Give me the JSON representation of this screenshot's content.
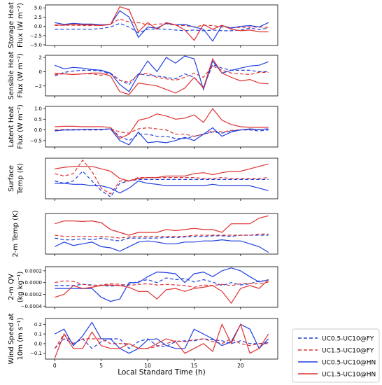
{
  "chart_data": {
    "type": "line",
    "x": [
      0,
      1,
      2,
      3,
      4,
      5,
      6,
      7,
      8,
      9,
      10,
      11,
      12,
      13,
      14,
      15,
      16,
      17,
      18,
      19,
      20,
      21,
      22,
      23
    ],
    "xlim": [
      -1,
      24
    ],
    "xticks": [
      0,
      5,
      10,
      15,
      20
    ],
    "xlabel": "Local Standard Time (h)",
    "legend": {
      "position": "lower-right",
      "entries": [
        {
          "label": "UC0.5-UC10@FY",
          "color": "#1f3fdf",
          "dash": "dashed"
        },
        {
          "label": "UC1.5-UC10@FY",
          "color": "#e03030",
          "dash": "dashed"
        },
        {
          "label": "UC0.5-UC10@HN",
          "color": "#1f3fdf",
          "dash": "solid"
        },
        {
          "label": "UC1.5-UC10@HN",
          "color": "#e03030",
          "dash": "solid"
        }
      ]
    },
    "panels": [
      {
        "ylabel": [
          "Storage Heat",
          "Flux (W m⁻²)"
        ],
        "ylim": [
          -5.2,
          5.8
        ],
        "yticks": [
          -5.0,
          -2.5,
          0.0,
          2.5,
          5.0
        ],
        "ytick_labels": [
          "−5.0",
          "−2.5",
          "0.0",
          "2.5",
          "5.0"
        ],
        "series": [
          {
            "values": [
              -0.8,
              -0.8,
              -0.8,
              -0.8,
              -0.8,
              -0.6,
              -0.2,
              0.8,
              -0.2,
              -1.8,
              -0.8,
              -0.7,
              -0.8,
              -1.0,
              -1.2,
              -1.0,
              -1.2,
              -1.0,
              -1.2,
              -1.2,
              -1.0,
              -0.5,
              -0.9,
              -0.5
            ]
          },
          {
            "values": [
              0.2,
              0.3,
              0.3,
              0.2,
              0.2,
              0.3,
              0.6,
              2.0,
              1.2,
              1.0,
              0.4,
              0.6,
              0.7,
              0.3,
              0.2,
              -0.2,
              0.3,
              0.2,
              -0.2,
              -0.3,
              -0.3,
              -0.2,
              -0.2,
              -0.3
            ]
          },
          {
            "values": [
              1.0,
              0.5,
              0.8,
              0.6,
              0.6,
              0.4,
              0.5,
              4.2,
              2.5,
              -3.0,
              -0.2,
              -0.5,
              0.8,
              0.4,
              0.5,
              -0.2,
              -0.8,
              -4.0,
              0.2,
              -0.5,
              0.0,
              0.2,
              -0.2,
              1.0
            ]
          },
          {
            "values": [
              0.4,
              0.3,
              0.6,
              0.4,
              0.4,
              0.2,
              0.5,
              5.3,
              4.5,
              -1.5,
              1.0,
              -0.8,
              1.0,
              0.4,
              -1.0,
              -3.8,
              0.5,
              -0.8,
              0.3,
              -0.8,
              -1.2,
              -1.0,
              -1.5,
              -1.5
            ]
          }
        ]
      },
      {
        "ylabel": [
          "Sensible Heat",
          "Flux (W m⁻²)"
        ],
        "ylim": [
          -3.4,
          2.3
        ],
        "yticks": [
          -2,
          0,
          2
        ],
        "ytick_labels": [
          "−2",
          "0",
          "2"
        ],
        "series": [
          {
            "values": [
              -0.6,
              -0.1,
              0.1,
              0.2,
              0.2,
              0.1,
              -0.3,
              -1.2,
              -1.8,
              -0.3,
              -0.5,
              -0.6,
              -0.8,
              -1.0,
              -0.3,
              -0.8,
              -2.2,
              1.0,
              0.5,
              0.2,
              0.2,
              0.2,
              0.0,
              0.0
            ]
          },
          {
            "values": [
              -0.4,
              -0.3,
              -0.4,
              -0.3,
              -0.3,
              -0.5,
              -0.2,
              -1.2,
              -1.5,
              -0.4,
              -0.2,
              -0.8,
              -1.0,
              -1.2,
              -0.8,
              -0.2,
              -0.8,
              0.8,
              0.2,
              -0.2,
              -0.3,
              -0.4,
              -0.1,
              -0.1
            ]
          },
          {
            "values": [
              0.9,
              0.4,
              0.6,
              0.5,
              0.3,
              0.2,
              -0.2,
              -1.8,
              -2.8,
              -0.5,
              1.5,
              0.0,
              2.0,
              1.2,
              2.2,
              1.8,
              -2.5,
              1.5,
              -0.2,
              0.2,
              0.5,
              0.8,
              0.9,
              1.4
            ]
          },
          {
            "values": [
              -0.2,
              -0.3,
              -0.4,
              -0.3,
              -0.2,
              -0.2,
              -0.6,
              -2.8,
              -3.2,
              -1.6,
              -1.8,
              -2.0,
              -2.5,
              -3.0,
              -2.3,
              -0.8,
              -2.3,
              1.8,
              -0.2,
              -0.8,
              -1.3,
              -1.1,
              -1.6,
              -1.7
            ]
          }
        ]
      },
      {
        "ylabel": [
          "Latent Heat",
          "Flux (W m⁻²)"
        ],
        "ylim": [
          -0.8,
          1.1
        ],
        "yticks": [
          -0.5,
          0.0,
          0.5,
          1.0
        ],
        "ytick_labels": [
          "−0.5",
          "0.0",
          "0.5",
          "1.0"
        ],
        "series": [
          {
            "values": [
              -0.02,
              0.0,
              0.0,
              0.0,
              0.0,
              0.0,
              0.05,
              -0.3,
              -0.5,
              -0.2,
              -0.2,
              -0.3,
              -0.3,
              -0.4,
              -0.4,
              -0.3,
              -0.2,
              -0.1,
              -0.15,
              -0.05,
              0.0,
              0.0,
              -0.05,
              0.0
            ]
          },
          {
            "values": [
              0.0,
              0.02,
              0.02,
              0.02,
              0.03,
              0.02,
              0.05,
              -0.1,
              -0.15,
              0.05,
              0.1,
              0.05,
              0.0,
              -0.2,
              -0.2,
              -0.3,
              -0.2,
              -0.05,
              -0.1,
              -0.02,
              0.0,
              0.02,
              0.02,
              0.05
            ]
          },
          {
            "values": [
              -0.05,
              0.0,
              0.0,
              0.02,
              0.03,
              0.03,
              0.05,
              -0.5,
              -0.7,
              -0.1,
              -0.6,
              -0.55,
              -0.6,
              -0.5,
              -0.35,
              -0.5,
              -0.2,
              0.1,
              -0.3,
              -0.1,
              0.0,
              0.05,
              0.02,
              0.05
            ]
          },
          {
            "values": [
              0.15,
              0.17,
              0.17,
              0.15,
              0.15,
              0.15,
              0.12,
              -0.4,
              -0.2,
              0.45,
              0.55,
              0.75,
              0.65,
              0.5,
              0.55,
              0.7,
              0.35,
              1.0,
              0.45,
              0.25,
              0.15,
              0.12,
              0.12,
              0.12
            ]
          }
        ]
      },
      {
        "ylabel": [
          "Surface",
          "Temp (K)"
        ],
        "ylim": [
          -0.42,
          0.42
        ],
        "yticks": [],
        "ytick_labels": [],
        "series": [
          {
            "values": [
              -0.05,
              -0.1,
              -0.05,
              0.15,
              -0.05,
              -0.25,
              -0.38,
              -0.1,
              -0.05,
              -0.02,
              -0.02,
              -0.02,
              -0.02,
              -0.02,
              -0.02,
              -0.02,
              -0.02,
              -0.02,
              -0.02,
              -0.02,
              -0.02,
              -0.02,
              -0.02,
              -0.02
            ]
          },
          {
            "values": [
              0.1,
              0.05,
              0.1,
              0.38,
              0.15,
              -0.2,
              -0.32,
              -0.05,
              -0.05,
              0.02,
              0.02,
              0.02,
              0.02,
              0.02,
              0.02,
              0.02,
              0.0,
              0.0,
              0.02,
              0.0,
              0.0,
              0.0,
              0.0,
              0.02
            ]
          },
          {
            "values": [
              -0.1,
              -0.1,
              -0.12,
              -0.12,
              -0.15,
              -0.15,
              -0.2,
              -0.3,
              -0.2,
              -0.05,
              -0.1,
              -0.12,
              -0.15,
              -0.15,
              -0.15,
              -0.15,
              -0.15,
              -0.12,
              -0.15,
              -0.15,
              -0.15,
              -0.15,
              -0.2,
              -0.25
            ]
          },
          {
            "values": [
              0.2,
              0.23,
              0.25,
              0.25,
              0.25,
              0.2,
              0.15,
              0.0,
              -0.05,
              0.0,
              0.02,
              0.02,
              0.05,
              0.05,
              0.05,
              0.1,
              0.12,
              0.08,
              0.12,
              0.15,
              0.15,
              0.2,
              0.25,
              0.3
            ]
          }
        ]
      },
      {
        "ylabel": [
          "2-m Temp (K)"
        ],
        "ylim": [
          -0.33,
          0.38
        ],
        "yticks": [],
        "ytick_labels": [],
        "series": [
          {
            "values": [
              -0.05,
              -0.08,
              -0.08,
              -0.06,
              -0.08,
              -0.05,
              -0.08,
              -0.1,
              -0.05,
              -0.05,
              -0.05,
              -0.05,
              -0.04,
              -0.04,
              -0.03,
              -0.02,
              -0.02,
              -0.01,
              -0.01,
              -0.02,
              0.0,
              0.0,
              0.0,
              0.0
            ]
          },
          {
            "values": [
              0.0,
              -0.02,
              -0.02,
              -0.02,
              -0.02,
              -0.02,
              -0.03,
              -0.05,
              -0.03,
              -0.02,
              -0.02,
              -0.02,
              -0.02,
              -0.02,
              -0.02,
              0.0,
              0.0,
              0.0,
              0.0,
              0.0,
              0.0,
              0.0,
              0.02,
              0.02
            ]
          },
          {
            "values": [
              -0.2,
              -0.12,
              -0.18,
              -0.15,
              -0.12,
              -0.2,
              -0.22,
              -0.28,
              -0.2,
              -0.12,
              -0.1,
              -0.12,
              -0.15,
              -0.15,
              -0.12,
              -0.12,
              -0.1,
              -0.1,
              -0.08,
              -0.1,
              -0.1,
              -0.15,
              -0.2,
              -0.3
            ]
          },
          {
            "values": [
              0.2,
              0.25,
              0.25,
              0.24,
              0.25,
              0.22,
              0.1,
              0.05,
              0.0,
              0.05,
              0.05,
              0.05,
              0.1,
              0.08,
              0.1,
              0.12,
              0.1,
              0.1,
              0.05,
              0.2,
              0.2,
              0.2,
              0.3,
              0.34
            ]
          }
        ]
      },
      {
        "ylabel": [
          "2-m QV",
          "(kg kg⁻¹)"
        ],
        "ylim": [
          -0.00042,
          0.00027
        ],
        "yticks": [
          -0.0004,
          -0.0002,
          0.0,
          0.0002
        ],
        "ytick_labels": [
          "−0.0004",
          "−0.0002",
          "0.0000",
          "0.0002"
        ],
        "series": [
          {
            "values": [
              -5e-05,
              -5e-05,
              -5e-05,
              -3e-05,
              -4e-05,
              -5e-05,
              -6e-05,
              -5e-05,
              -3e-05,
              2e-05,
              5e-05,
              0.0,
              8e-05,
              5e-05,
              7e-05,
              1e-05,
              5e-05,
              1e-05,
              -5e-05,
              0.0,
              -4e-05,
              -2e-05,
              3e-05,
              3e-05
            ]
          },
          {
            "values": [
              0.0,
              3e-05,
              2e-05,
              -3e-05,
              -5e-05,
              -4e-05,
              -2e-05,
              -3e-05,
              -5e-05,
              -3e-05,
              -2e-05,
              -4e-05,
              -3e-05,
              -4e-05,
              -5e-05,
              -8e-05,
              -4e-05,
              -5e-05,
              -3e-05,
              -5e-05,
              -2e-05,
              -1e-05,
              -2e-05,
              1e-05
            ]
          },
          {
            "values": [
              -0.0001,
              -0.0001,
              -0.0001,
              -0.0001,
              -0.0001,
              -0.00025,
              -0.00032,
              -0.00028,
              0.0,
              0.0,
              0.0001,
              0.00018,
              0.00017,
              0.00015,
              0.0,
              0.00015,
              0.00018,
              0.0001,
              0.0002,
              0.00025,
              0.0002,
              0.0001,
              1e-05,
              5e-05
            ]
          },
          {
            "values": [
              -0.00025,
              -0.0002,
              -5e-05,
              -0.0001,
              -8e-05,
              -5e-05,
              -4e-05,
              -5e-05,
              -8e-05,
              -0.00015,
              -0.00015,
              -0.00028,
              -0.00012,
              -0.0001,
              -0.00015,
              -0.0001,
              -8e-05,
              -5e-05,
              -0.00015,
              -0.00035,
              -0.0001,
              -5e-05,
              -0.0001,
              5e-05
            ]
          }
        ]
      },
      {
        "ylabel": [
          "Wind Speed at",
          "10m (m s⁻¹)"
        ],
        "ylim": [
          -0.16,
          0.26
        ],
        "yticks": [
          -0.1,
          0.0,
          0.1,
          0.2
        ],
        "ytick_labels": [
          "−0.1",
          "0.0",
          "0.1",
          "0.2"
        ],
        "series": [
          {
            "values": [
              -0.05,
              0.05,
              0.0,
              0.05,
              -0.05,
              0.02,
              0.05,
              0.05,
              -0.05,
              0.02,
              0.05,
              -0.02,
              -0.03,
              0.02,
              0.03,
              0.03,
              0.05,
              0.04,
              0.03,
              0.0,
              0.03,
              0.0,
              0.0,
              0.01
            ]
          },
          {
            "values": [
              -0.05,
              0.1,
              0.0,
              0.05,
              0.05,
              0.05,
              0.0,
              0.0,
              0.0,
              -0.05,
              -0.05,
              -0.03,
              0.0,
              0.03,
              0.02,
              0.04,
              0.05,
              0.02,
              0.0,
              0.05,
              0.0,
              -0.02,
              0.0,
              0.0
            ]
          },
          {
            "values": [
              0.1,
              0.15,
              -0.02,
              0.08,
              0.22,
              0.05,
              0.05,
              -0.05,
              -0.1,
              -0.05,
              0.04,
              0.05,
              -0.02,
              -0.05,
              -0.05,
              0.15,
              0.1,
              0.05,
              -0.02,
              0.02,
              0.2,
              0.15,
              -0.05,
              0.05
            ]
          },
          {
            "values": [
              -0.15,
              0.1,
              -0.05,
              -0.05,
              0.12,
              -0.02,
              -0.05,
              -0.05,
              0.0,
              -0.05,
              -0.05,
              0.0,
              0.05,
              0.02,
              -0.1,
              -0.05,
              0.0,
              -0.08,
              0.2,
              0.0,
              0.2,
              -0.1,
              -0.05,
              0.1
            ]
          }
        ]
      }
    ]
  }
}
